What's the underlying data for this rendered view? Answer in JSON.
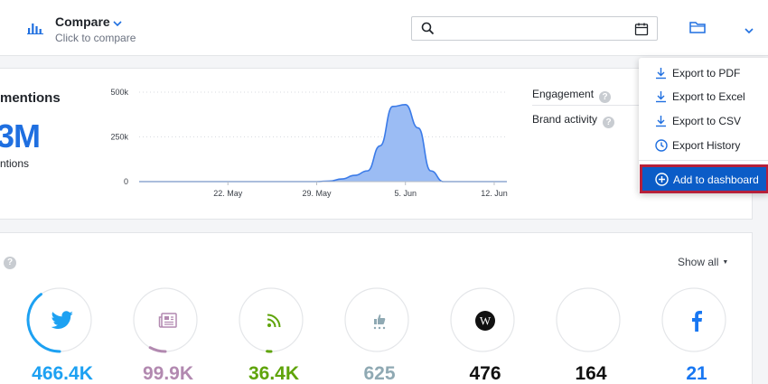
{
  "header": {
    "title": "Compare",
    "subtitle": "Click to compare",
    "search": {
      "value": "",
      "placeholder": ""
    }
  },
  "mentions": {
    "title": "mentions",
    "big_value": "3M",
    "subtitle": "ntions"
  },
  "chart_data": {
    "type": "area",
    "x": [
      "15 May",
      "16 May",
      "17 May",
      "18 May",
      "19 May",
      "20 May",
      "21 May",
      "22 May",
      "23 May",
      "24 May",
      "25 May",
      "26 May",
      "27 May",
      "28 May",
      "29 May",
      "30 May",
      "31 May",
      "1 Jun",
      "2 Jun",
      "3 Jun",
      "4 Jun",
      "5 Jun",
      "6 Jun",
      "7 Jun",
      "8 Jun",
      "9 Jun",
      "10 Jun",
      "11 Jun",
      "12 Jun",
      "13 Jun"
    ],
    "series": [
      {
        "values": [
          0,
          0,
          0,
          0,
          0,
          0,
          0,
          0,
          0,
          0,
          0,
          0,
          0,
          0,
          0,
          3000,
          15000,
          35000,
          60000,
          200000,
          420000,
          430000,
          300000,
          60000,
          0,
          0,
          0,
          0,
          0,
          0
        ]
      }
    ],
    "x_tick_labels": [
      "22. May",
      "29. May",
      "5. Jun",
      "12. Jun"
    ],
    "y_tick_labels": [
      "500k",
      "250k",
      "0"
    ],
    "ylim": [
      0,
      500000
    ],
    "grid": true,
    "color": "#9bbcf4",
    "line_color": "#3b7be8"
  },
  "kpis": [
    {
      "label": "Engagement"
    },
    {
      "label": "Brand activity"
    }
  ],
  "help_glyph": "?",
  "sources": {
    "show_all": "Show all",
    "items": [
      {
        "icon": "twitter-icon",
        "value": "466.4K",
        "color": "#1da1f2",
        "fraction": 0.4
      },
      {
        "icon": "news-icon",
        "value": "99.9K",
        "color": "#b289b0",
        "fraction": 0.08
      },
      {
        "icon": "rss-icon",
        "value": "36.4K",
        "color": "#5fa40a",
        "fraction": 0.02
      },
      {
        "icon": "review-icon",
        "value": "625",
        "color": "#8fa9b3",
        "fraction": 0
      },
      {
        "icon": "wikipedia-icon",
        "value": "476",
        "color": "#111111",
        "fraction": 0
      },
      {
        "icon": "blank-icon",
        "value": "164",
        "color": "#111111",
        "fraction": 0
      },
      {
        "icon": "facebook-icon",
        "value": "21",
        "color": "#1877f2",
        "fraction": 0
      }
    ]
  },
  "menu": {
    "items": [
      {
        "label": "Export to PDF",
        "icon": "download-icon"
      },
      {
        "label": "Export to Excel",
        "icon": "download-icon"
      },
      {
        "label": "Export to CSV",
        "icon": "download-icon"
      },
      {
        "label": "Export History",
        "icon": "clock-icon"
      }
    ],
    "action": {
      "label": "Add to dashboard",
      "icon": "plus-circle-icon"
    }
  },
  "colors": {
    "accent": "#1f6fe0",
    "menu_highlight": "#0b5cc7",
    "highlight_border": "#b6203a"
  }
}
